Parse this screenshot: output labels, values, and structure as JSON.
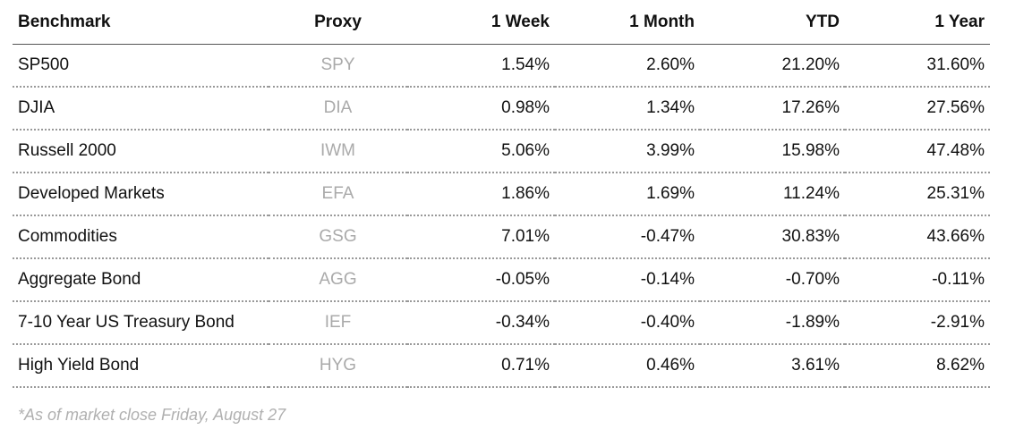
{
  "table": {
    "columns": [
      "Benchmark",
      "Proxy",
      "1 Week",
      "1 Month",
      "YTD",
      "1 Year"
    ],
    "rows": [
      [
        "SP500",
        "SPY",
        "1.54%",
        "2.60%",
        "21.20%",
        "31.60%"
      ],
      [
        "DJIA",
        "DIA",
        "0.98%",
        "1.34%",
        "17.26%",
        "27.56%"
      ],
      [
        "Russell 2000",
        "IWM",
        "5.06%",
        "3.99%",
        "15.98%",
        "47.48%"
      ],
      [
        "Developed Markets",
        "EFA",
        "1.86%",
        "1.69%",
        "11.24%",
        "25.31%"
      ],
      [
        "Commodities",
        "GSG",
        "7.01%",
        "-0.47%",
        "30.83%",
        "43.66%"
      ],
      [
        "Aggregate Bond",
        "AGG",
        "-0.05%",
        "-0.14%",
        "-0.70%",
        "-0.11%"
      ],
      [
        "7-10 Year US Treasury Bond",
        "IEF",
        "-0.34%",
        "-0.40%",
        "-1.89%",
        "-2.91%"
      ],
      [
        "High Yield Bond",
        "HYG",
        "0.71%",
        "0.46%",
        "3.61%",
        "8.62%"
      ]
    ]
  },
  "footnote": "*As of market close Friday, August 27"
}
